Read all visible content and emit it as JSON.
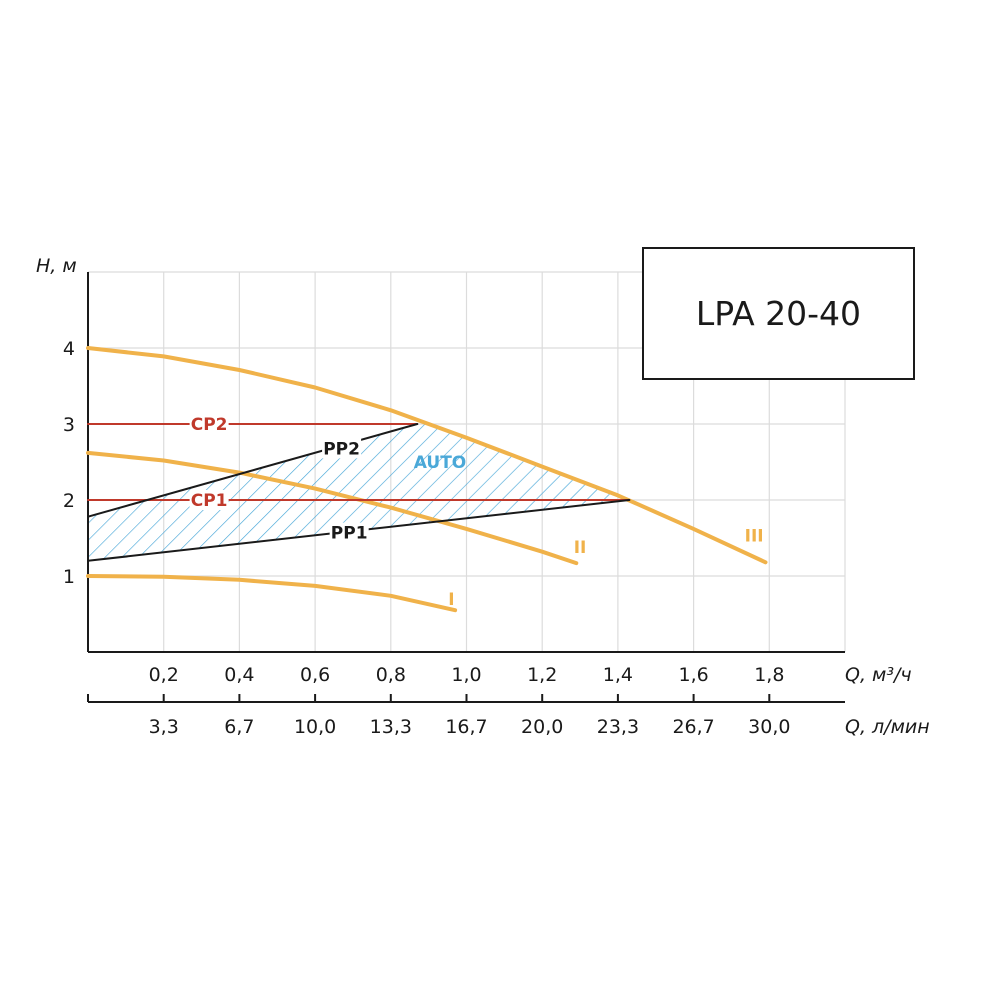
{
  "chart_data": {
    "type": "line",
    "title": "LPA 20-40",
    "ylabel": "H, м",
    "xlabel": "Q, м³/ч",
    "x2label": "Q, л/мин",
    "xlim": [
      0,
      2.0
    ],
    "ylim": [
      0,
      5
    ],
    "grid": true,
    "x_ticks": [
      "0,2",
      "0,4",
      "0,6",
      "0,8",
      "1,0",
      "1,2",
      "1,4",
      "1,6",
      "1,8"
    ],
    "x2_ticks": [
      "3,3",
      "6,7",
      "10,0",
      "13,3",
      "16,7",
      "20,0",
      "23,3",
      "26,7",
      "30,0"
    ],
    "y_ticks": [
      "1",
      "2",
      "3",
      "4"
    ],
    "colors": {
      "speed_curve": "#f0b24a",
      "cp": "#c0392b",
      "pp": "#1a1a1a",
      "auto": "#4aa8d8"
    },
    "series": [
      {
        "name": "I",
        "kind": "speed",
        "x": [
          0,
          0.2,
          0.4,
          0.6,
          0.8,
          0.97
        ],
        "y": [
          1.0,
          0.99,
          0.95,
          0.87,
          0.74,
          0.55
        ]
      },
      {
        "name": "II",
        "kind": "speed",
        "x": [
          0,
          0.2,
          0.4,
          0.6,
          0.8,
          1.0,
          1.2,
          1.29
        ],
        "y": [
          2.62,
          2.52,
          2.36,
          2.15,
          1.9,
          1.62,
          1.32,
          1.17
        ]
      },
      {
        "name": "III",
        "kind": "speed",
        "x": [
          0,
          0.2,
          0.4,
          0.6,
          0.8,
          1.0,
          1.2,
          1.4,
          1.6,
          1.79
        ],
        "y": [
          4.0,
          3.89,
          3.71,
          3.48,
          3.18,
          2.82,
          2.44,
          2.06,
          1.62,
          1.18
        ]
      },
      {
        "name": "CP2",
        "kind": "cp",
        "x": [
          0,
          0.87
        ],
        "y": [
          3.0,
          3.0
        ]
      },
      {
        "name": "CP1",
        "kind": "cp",
        "x": [
          0,
          1.43
        ],
        "y": [
          2.0,
          2.0
        ]
      },
      {
        "name": "PP2",
        "kind": "pp",
        "x": [
          0,
          0.87
        ],
        "y": [
          1.78,
          3.0
        ]
      },
      {
        "name": "PP1",
        "kind": "pp",
        "x": [
          0,
          1.43
        ],
        "y": [
          1.2,
          2.0
        ]
      }
    ],
    "labels": [
      {
        "text": "CP2",
        "x": 0.32,
        "y": 3.0,
        "kind": "cp"
      },
      {
        "text": "CP1",
        "x": 0.32,
        "y": 2.0,
        "kind": "cp"
      },
      {
        "text": "PP2",
        "x": 0.67,
        "y": 2.68,
        "kind": "pp"
      },
      {
        "text": "PP1",
        "x": 0.69,
        "y": 1.57,
        "kind": "pp"
      },
      {
        "text": "AUTO",
        "x": 0.93,
        "y": 2.5,
        "kind": "auto"
      },
      {
        "text": "I",
        "x": 0.96,
        "y": 0.7,
        "kind": "speed"
      },
      {
        "text": "II",
        "x": 1.3,
        "y": 1.38,
        "kind": "speed"
      },
      {
        "text": "III",
        "x": 1.76,
        "y": 1.53,
        "kind": "speed"
      }
    ]
  }
}
